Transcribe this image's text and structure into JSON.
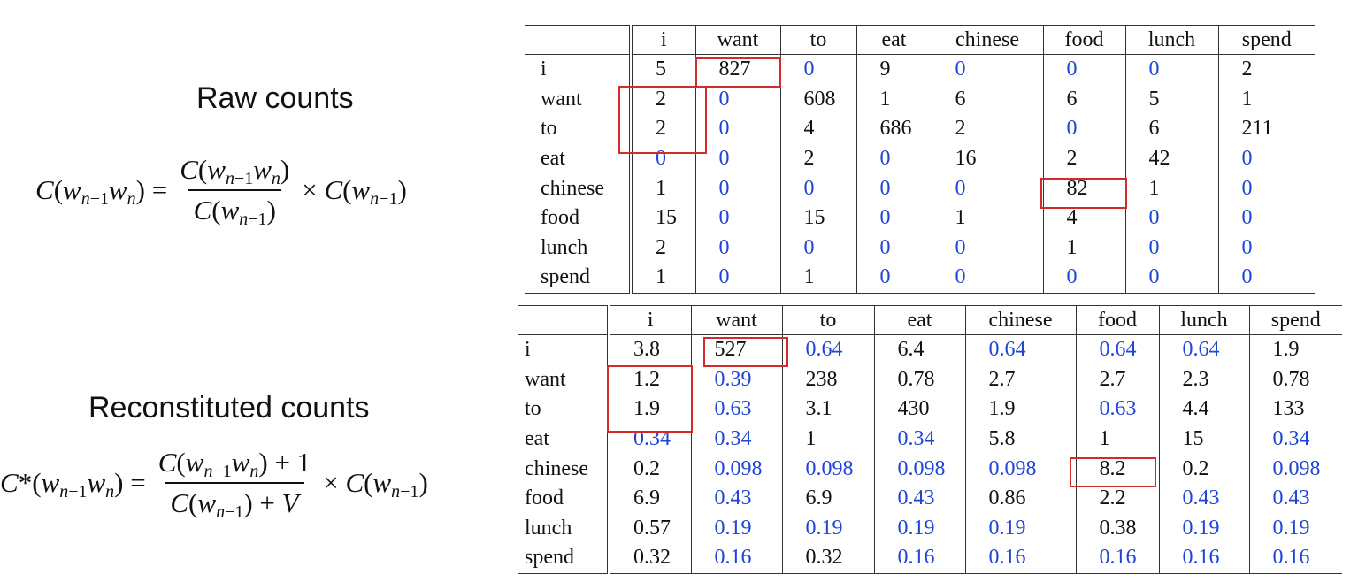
{
  "labels": {
    "raw": "Raw counts",
    "reconstituted": "Reconstituted counts"
  },
  "columns": [
    "i",
    "want",
    "to",
    "eat",
    "chinese",
    "food",
    "lunch",
    "spend"
  ],
  "raw_table": {
    "rows": [
      {
        "label": "i",
        "values": [
          "5",
          "827",
          "0",
          "9",
          "0",
          "0",
          "0",
          "2"
        ]
      },
      {
        "label": "want",
        "values": [
          "2",
          "0",
          "608",
          "1",
          "6",
          "6",
          "5",
          "1"
        ]
      },
      {
        "label": "to",
        "values": [
          "2",
          "0",
          "4",
          "686",
          "2",
          "0",
          "6",
          "211"
        ]
      },
      {
        "label": "eat",
        "values": [
          "0",
          "0",
          "2",
          "0",
          "16",
          "2",
          "42",
          "0"
        ]
      },
      {
        "label": "chinese",
        "values": [
          "1",
          "0",
          "0",
          "0",
          "0",
          "82",
          "1",
          "0"
        ]
      },
      {
        "label": "food",
        "values": [
          "15",
          "0",
          "15",
          "0",
          "1",
          "4",
          "0",
          "0"
        ]
      },
      {
        "label": "lunch",
        "values": [
          "2",
          "0",
          "0",
          "0",
          "0",
          "1",
          "0",
          "0"
        ]
      },
      {
        "label": "spend",
        "values": [
          "1",
          "0",
          "1",
          "0",
          "0",
          "0",
          "0",
          "0"
        ]
      }
    ]
  },
  "recon_table": {
    "rows": [
      {
        "label": "i",
        "values": [
          "3.8",
          "527",
          "0.64",
          "6.4",
          "0.64",
          "0.64",
          "0.64",
          "1.9"
        ],
        "blue": [
          false,
          false,
          true,
          false,
          true,
          true,
          true,
          false
        ]
      },
      {
        "label": "want",
        "values": [
          "1.2",
          "0.39",
          "238",
          "0.78",
          "2.7",
          "2.7",
          "2.3",
          "0.78"
        ],
        "blue": [
          false,
          true,
          false,
          false,
          false,
          false,
          false,
          false
        ]
      },
      {
        "label": "to",
        "values": [
          "1.9",
          "0.63",
          "3.1",
          "430",
          "1.9",
          "0.63",
          "4.4",
          "133"
        ],
        "blue": [
          false,
          true,
          false,
          false,
          false,
          true,
          false,
          false
        ]
      },
      {
        "label": "eat",
        "values": [
          "0.34",
          "0.34",
          "1",
          "0.34",
          "5.8",
          "1",
          "15",
          "0.34"
        ],
        "blue": [
          true,
          true,
          false,
          true,
          false,
          false,
          false,
          true
        ]
      },
      {
        "label": "chinese",
        "values": [
          "0.2",
          "0.098",
          "0.098",
          "0.098",
          "0.098",
          "8.2",
          "0.2",
          "0.098"
        ],
        "blue": [
          false,
          true,
          true,
          true,
          true,
          false,
          false,
          true
        ]
      },
      {
        "label": "food",
        "values": [
          "6.9",
          "0.43",
          "6.9",
          "0.43",
          "0.86",
          "2.2",
          "0.43",
          "0.43"
        ],
        "blue": [
          false,
          true,
          false,
          true,
          false,
          false,
          true,
          true
        ]
      },
      {
        "label": "lunch",
        "values": [
          "0.57",
          "0.19",
          "0.19",
          "0.19",
          "0.19",
          "0.38",
          "0.19",
          "0.19"
        ],
        "blue": [
          false,
          true,
          true,
          true,
          true,
          false,
          true,
          true
        ]
      },
      {
        "label": "spend",
        "values": [
          "0.32",
          "0.16",
          "0.32",
          "0.16",
          "0.16",
          "0.16",
          "0.16",
          "0.16"
        ],
        "blue": [
          false,
          true,
          false,
          true,
          true,
          true,
          true,
          true
        ]
      }
    ]
  },
  "colors": {
    "zero_value": "#1f45d8",
    "highlight_box": "#d42a2a"
  },
  "highlights": {
    "raw": [
      {
        "row": "i",
        "col": "want"
      },
      {
        "rows": [
          "want",
          "to"
        ],
        "col": "i"
      },
      {
        "row": "chinese",
        "col": "food"
      }
    ],
    "recon": [
      {
        "row": "i",
        "col": "want"
      },
      {
        "rows": [
          "want",
          "to"
        ],
        "col": "i"
      },
      {
        "row": "chinese",
        "col": "food"
      }
    ]
  }
}
